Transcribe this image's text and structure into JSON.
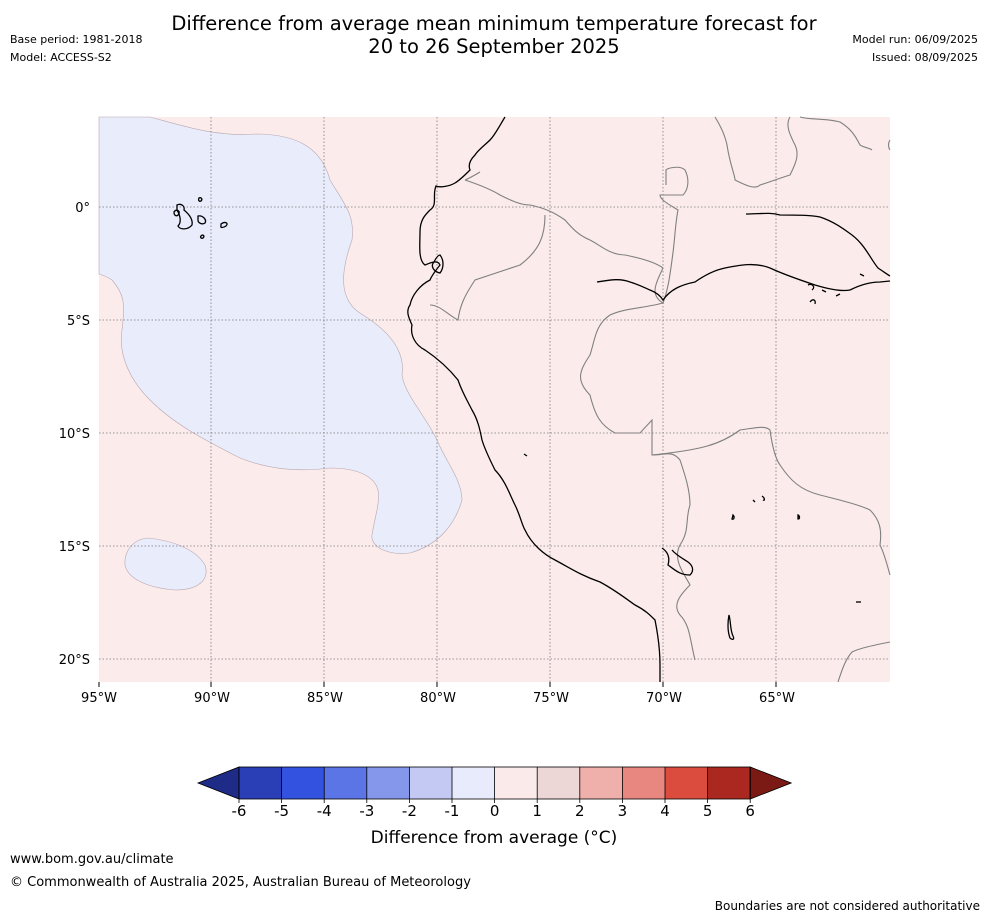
{
  "header": {
    "title_line1": "Difference from average mean minimum temperature forecast for",
    "title_line2": "20 to 26 September 2025",
    "base_period": "Base period: 1981-2018",
    "model": "Model: ACCESS-S2",
    "model_run": "Model run: 06/09/2025",
    "issued": "Issued: 08/09/2025"
  },
  "map": {
    "lon_labels": [
      "95°W",
      "90°W",
      "85°W",
      "80°W",
      "75°W",
      "70°W",
      "65°W"
    ],
    "lat_labels": [
      "0°",
      "5°S",
      "10°S",
      "15°S",
      "20°S"
    ],
    "colors": {
      "anomaly_0_to_1": "#fbeceb",
      "anomaly_minus1_to_0": "#e8ecfb",
      "coastline": "#000000",
      "border": "#808080",
      "gridline": "#7a7a7a"
    }
  },
  "colorbar": {
    "ticks": [
      "-6",
      "-5",
      "-4",
      "-3",
      "-2",
      "-1",
      "0",
      "1",
      "2",
      "3",
      "4",
      "5",
      "6"
    ],
    "colors": [
      "#1e2b87",
      "#2a3eb5",
      "#3352e0",
      "#5b75e6",
      "#8597ea",
      "#c3c9f3",
      "#e8ebfb",
      "#fbeaea",
      "#ecd6d6",
      "#efb0ab",
      "#e8877f",
      "#db4b3e",
      "#ab2820",
      "#7b1a15"
    ],
    "title": "Difference from average (°C)"
  },
  "footer": {
    "url": "www.bom.gov.au/climate",
    "copyright": "© Commonwealth of Australia 2025, Australian Bureau of Meteorology",
    "disclaimer": "Boundaries are not considered authoritative"
  }
}
